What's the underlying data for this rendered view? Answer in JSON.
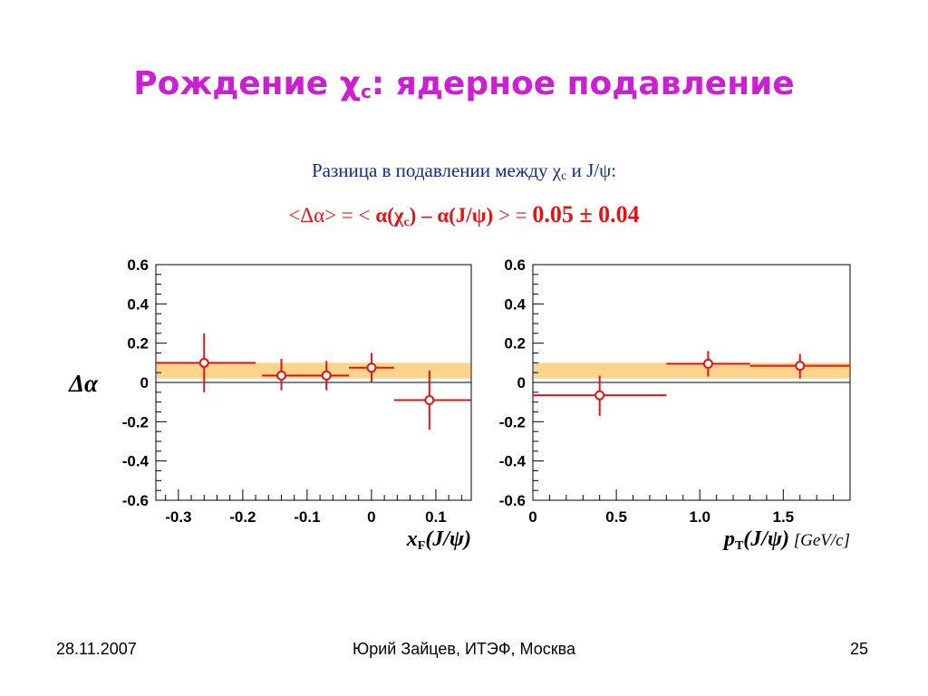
{
  "slide": {
    "title_text": "Рождение χ",
    "title_sub": "c",
    "title_rest": ": ядерное подавление",
    "subtitle_text": "Разница в подавлении между χ",
    "subtitle_sub": "c",
    "subtitle_rest": " и J/ψ:",
    "formula": {
      "part1": "<Δα> = < ",
      "part2": "α(χ",
      "sub": "c",
      "part3": ") – α(J/ψ)",
      "part4": " > = ",
      "value": "0.05 ± 0.04"
    },
    "footer_date": "28.11.2007",
    "footer_author": "Юрий Зайцев, ИТЭФ, Москва",
    "footer_page": "25"
  },
  "colors": {
    "title": "#cc1fd4",
    "subtitle": "#0d2d8a",
    "formula": "#e01515",
    "points": "#e01515",
    "band": "#fdd48c"
  },
  "chart_data": [
    {
      "type": "scatter",
      "ylabel": "Δα",
      "xlabel": "x",
      "xlabel_sub": "F",
      "xlabel_rest": "(J/ψ)",
      "xlim": [
        -0.335,
        0.155
      ],
      "ylim": [
        -0.6,
        0.6
      ],
      "xticks": [
        -0.3,
        -0.2,
        -0.1,
        0,
        0.1
      ],
      "xtick_labels": [
        "-0.3",
        "-0.2",
        "-0.1",
        "0",
        "0.1"
      ],
      "yticks": [
        -0.6,
        -0.4,
        -0.2,
        0,
        0.2,
        0.4,
        0.6
      ],
      "ytick_labels": [
        "-0.6",
        "-0.4",
        "-0.2",
        "0",
        "0.2",
        "0.4",
        "0.6"
      ],
      "band": [
        0.02,
        0.1
      ],
      "points": [
        {
          "x": -0.26,
          "y": 0.1,
          "xerr_lo": -0.335,
          "xerr_hi": -0.18,
          "yerr_lo": -0.05,
          "yerr_hi": 0.25
        },
        {
          "x": -0.14,
          "y": 0.035,
          "xerr_lo": -0.17,
          "xerr_hi": -0.105,
          "yerr_lo": -0.04,
          "yerr_hi": 0.12
        },
        {
          "x": -0.07,
          "y": 0.035,
          "xerr_lo": -0.105,
          "xerr_hi": -0.035,
          "yerr_lo": -0.04,
          "yerr_hi": 0.11
        },
        {
          "x": 0.0,
          "y": 0.075,
          "xerr_lo": -0.035,
          "xerr_hi": 0.035,
          "yerr_lo": 0.0,
          "yerr_hi": 0.15
        },
        {
          "x": 0.09,
          "y": -0.09,
          "xerr_lo": 0.035,
          "xerr_hi": 0.155,
          "yerr_lo": -0.24,
          "yerr_hi": 0.06
        }
      ]
    },
    {
      "type": "scatter",
      "xlabel": "p",
      "xlabel_sub": "T",
      "xlabel_rest": "(J/ψ)",
      "xlabel_unit": "[GeV/c]",
      "xlim": [
        0,
        1.9
      ],
      "ylim": [
        -0.6,
        0.6
      ],
      "xticks": [
        0,
        0.5,
        1.0,
        1.5
      ],
      "xtick_labels": [
        "0",
        "0.5",
        "1.0",
        "1.5"
      ],
      "yticks": [
        -0.6,
        -0.4,
        -0.2,
        0,
        0.2,
        0.4,
        0.6
      ],
      "ytick_labels": [
        "-0.6",
        "-0.4",
        "-0.2",
        "0",
        "0.2",
        "0.4",
        "0.6"
      ],
      "band": [
        0.02,
        0.1
      ],
      "points": [
        {
          "x": 0.4,
          "y": -0.065,
          "xerr_lo": 0.0,
          "xerr_hi": 0.8,
          "yerr_lo": -0.17,
          "yerr_hi": 0.035
        },
        {
          "x": 1.05,
          "y": 0.095,
          "xerr_lo": 0.8,
          "xerr_hi": 1.3,
          "yerr_lo": 0.03,
          "yerr_hi": 0.16
        },
        {
          "x": 1.6,
          "y": 0.085,
          "xerr_lo": 1.3,
          "xerr_hi": 1.9,
          "yerr_lo": 0.02,
          "yerr_hi": 0.145
        }
      ]
    }
  ]
}
